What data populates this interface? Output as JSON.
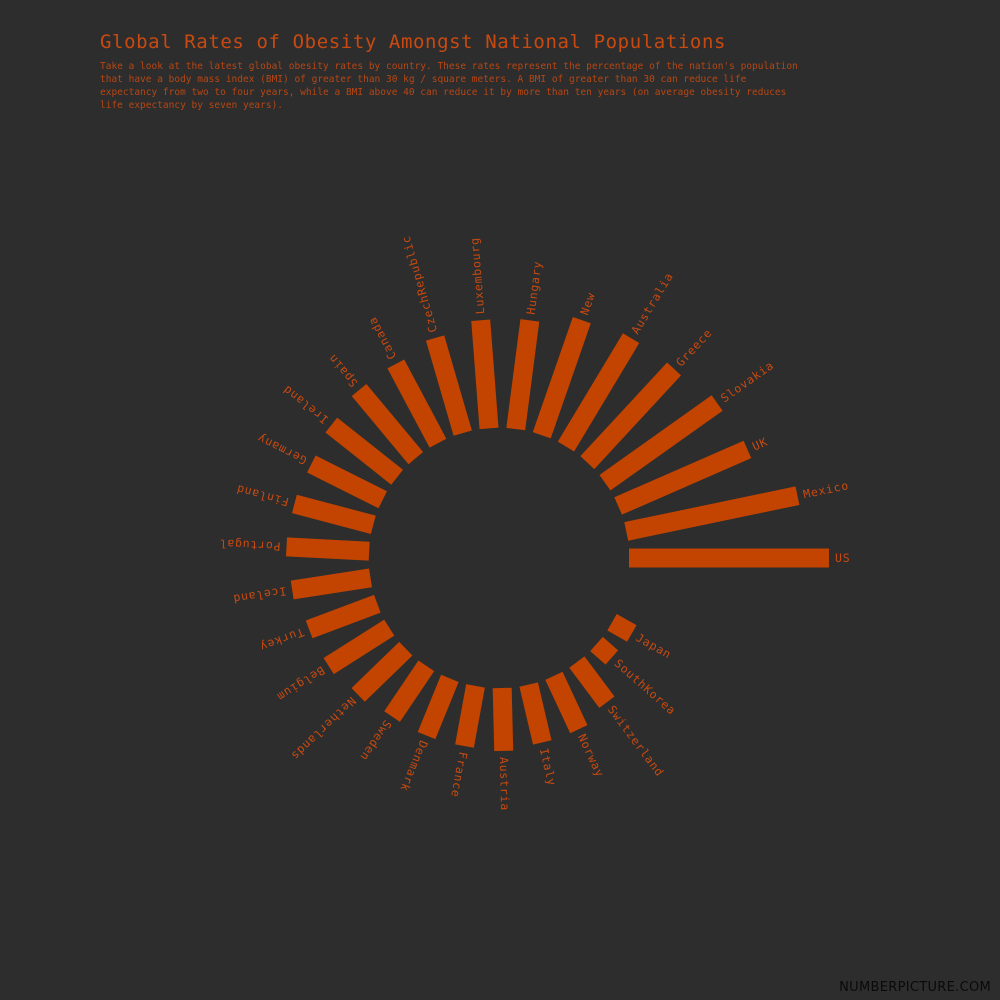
{
  "header": {
    "title": "Global Rates of Obesity Amongst National Populations",
    "subtitle": "Take a look at the latest global obesity rates by country. These rates represent the percentage of the nation's population that have a body mass index (BMI) of greater than 30 kg / square meters. A BMI of greater than 30 can reduce life expectancy from two to four years, while a BMI above 40 can reduce it by more than ten years (on average obesity reduces life expectancy by seven years)."
  },
  "footer": {
    "credit": "NUMBERPICTURE.COM"
  },
  "colors": {
    "background": "#2d2d2d",
    "bar": "#c24400",
    "text": "#c94a10",
    "credit": "#0a0a0a"
  },
  "chart_data": {
    "type": "bar",
    "layout": "radial",
    "categories": [
      "US",
      "Mexico",
      "UK",
      "Slovakia",
      "Greece",
      "Australia",
      "New",
      "Hungary",
      "Luxembourg",
      "CzechRepublic",
      "Canada",
      "Spain",
      "Ireland",
      "Germany",
      "Finland",
      "Portugal",
      "Iceland",
      "Turkey",
      "Belgium",
      "Netherlands",
      "Sweden",
      "Denmark",
      "France",
      "Austria",
      "Italy",
      "Norway",
      "Switzerland",
      "SouthKorea",
      "Japan"
    ],
    "values": [
      34.3,
      30.0,
      24.2,
      23.6,
      21.9,
      21.7,
      20.9,
      18.8,
      18.6,
      17.0,
      15.4,
      15.2,
      14.4,
      13.7,
      14.0,
      14.2,
      13.6,
      12.5,
      12.3,
      11.4,
      10.5,
      10.6,
      10.5,
      10.8,
      10.2,
      10.1,
      8.6,
      3.5,
      3.9
    ],
    "angle_start_deg": 0,
    "angle_step_deg": -11.8
  }
}
